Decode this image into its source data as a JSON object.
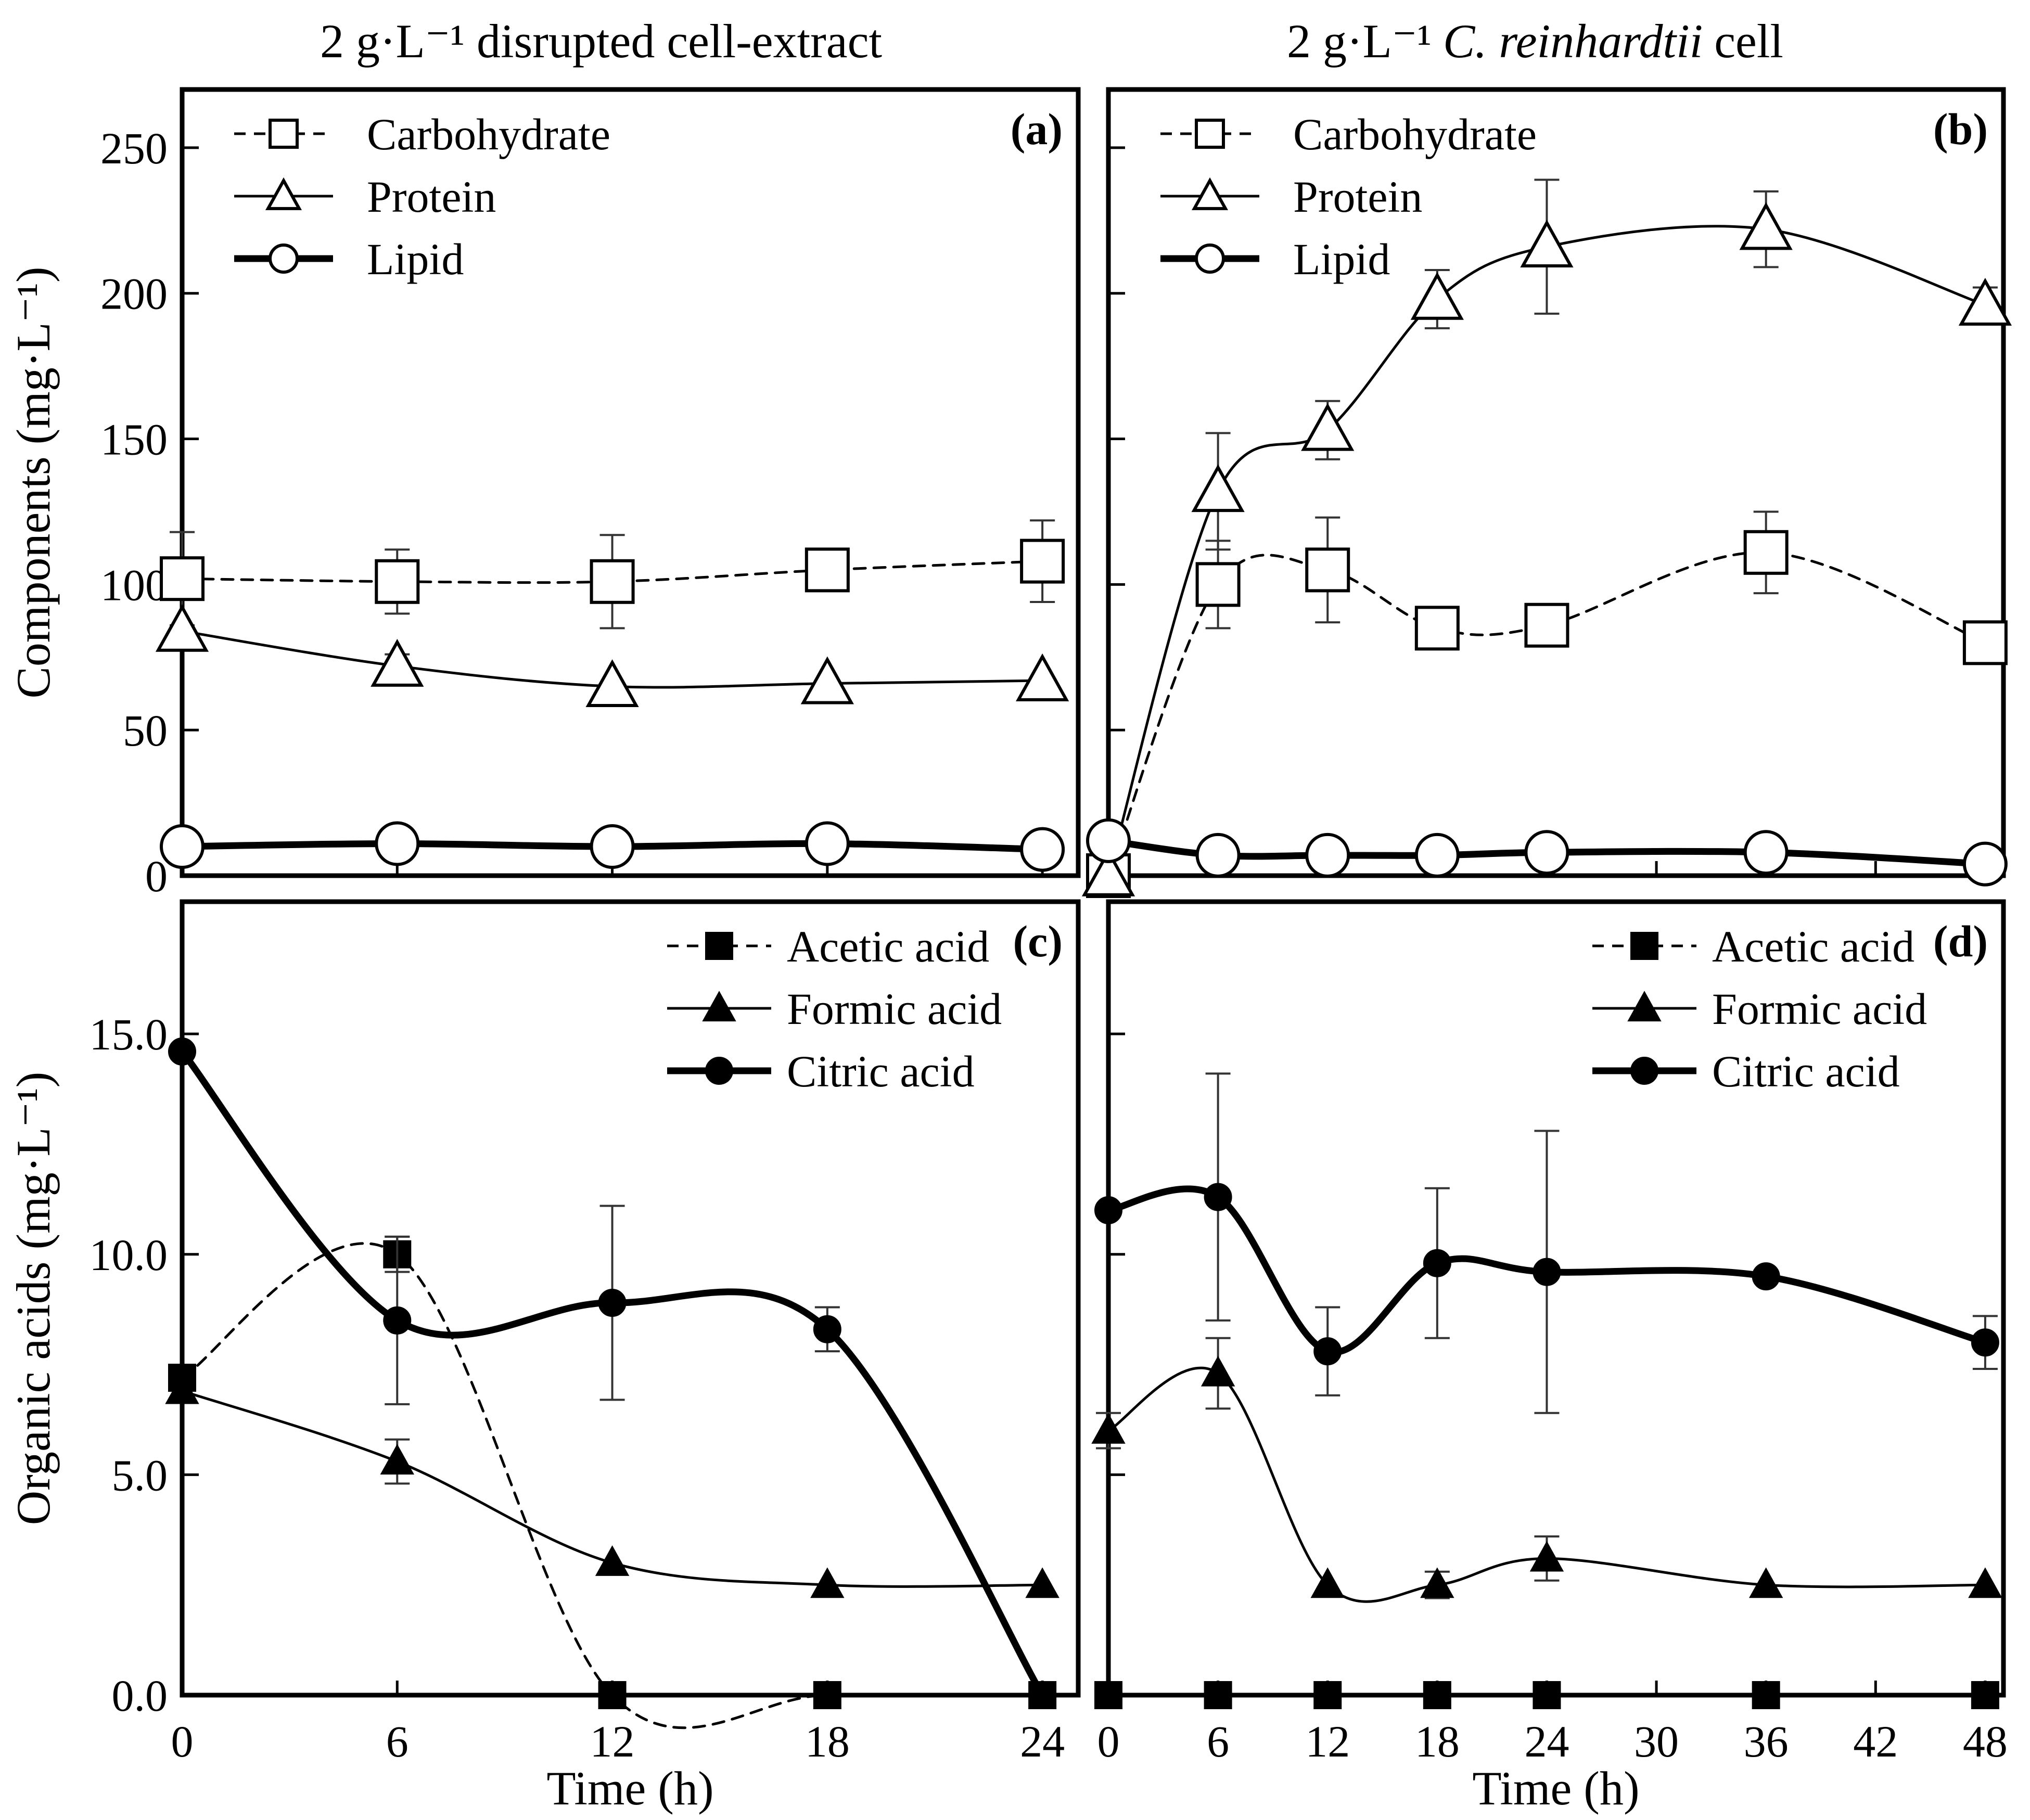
{
  "titles": {
    "left": "2 g·L⁻¹ disrupted cell-extract",
    "right_prefix": "2 g·L⁻¹",
    "right_species": "C. reinhardtii",
    "right_suffix": "cell"
  },
  "chart_data": [
    {
      "id": "a",
      "type": "line",
      "panel_label": "(a)",
      "xlabel": "",
      "ylabel": "Components (mg·L⁻¹)",
      "xlim": [
        0,
        25
      ],
      "ylim": [
        0,
        270
      ],
      "xticks": [
        0,
        6,
        12,
        18,
        24
      ],
      "yticks": [
        0,
        50,
        100,
        150,
        200,
        250
      ],
      "ytick_labels": [
        "0",
        "50",
        "100",
        "150",
        "200",
        "250"
      ],
      "show_x_tick_labels": false,
      "show_y_tick_labels": true,
      "legend_position": "top-left",
      "series": [
        {
          "name": "Carbohydrate",
          "marker": "open-square",
          "line": "dashed",
          "x": [
            0,
            6,
            12,
            18,
            24
          ],
          "y": [
            102,
            101,
            101,
            105,
            108
          ],
          "err": [
            16,
            11,
            16,
            3,
            14
          ]
        },
        {
          "name": "Protein",
          "marker": "open-triangle",
          "line": "thin",
          "x": [
            0,
            6,
            12,
            18,
            24
          ],
          "y": [
            84,
            72,
            65,
            66,
            67
          ],
          "err": [
            0,
            4,
            0,
            0,
            0
          ]
        },
        {
          "name": "Lipid",
          "marker": "open-circle",
          "line": "thick",
          "x": [
            0,
            6,
            12,
            18,
            24
          ],
          "y": [
            10,
            11,
            10,
            11,
            9
          ],
          "err": [
            0,
            0,
            0,
            0,
            0
          ]
        }
      ]
    },
    {
      "id": "b",
      "type": "line",
      "panel_label": "(b)",
      "xlabel": "",
      "ylabel": "",
      "xlim": [
        0,
        49
      ],
      "ylim": [
        0,
        270
      ],
      "xticks": [
        0,
        6,
        12,
        18,
        24,
        30,
        36,
        42,
        48
      ],
      "yticks": [
        0,
        50,
        100,
        150,
        200,
        250
      ],
      "show_x_tick_labels": false,
      "show_y_tick_labels": false,
      "legend_position": "top-left",
      "series": [
        {
          "name": "Carbohydrate",
          "marker": "open-square",
          "line": "dashed",
          "x": [
            0,
            6,
            12,
            18,
            24,
            36,
            48
          ],
          "y": [
            0,
            100,
            105,
            85,
            86,
            111,
            80
          ],
          "err": [
            0,
            15,
            18,
            0,
            7,
            14,
            0
          ]
        },
        {
          "name": "Protein",
          "marker": "open-triangle",
          "line": "thin",
          "x": [
            0,
            6,
            12,
            18,
            24,
            36,
            48
          ],
          "y": [
            0,
            132,
            153,
            198,
            216,
            222,
            196
          ],
          "err": [
            0,
            20,
            10,
            10,
            23,
            13,
            6
          ]
        },
        {
          "name": "Lipid",
          "marker": "open-circle",
          "line": "thick",
          "x": [
            0,
            6,
            12,
            18,
            24,
            36,
            48
          ],
          "y": [
            12,
            7,
            7,
            7,
            8,
            8,
            4
          ],
          "err": [
            0,
            0,
            0,
            0,
            0,
            0,
            0
          ]
        }
      ]
    },
    {
      "id": "c",
      "type": "line",
      "panel_label": "(c)",
      "xlabel": "Time (h)",
      "ylabel": "Organic acids (mg·L⁻¹)",
      "xlim": [
        0,
        25
      ],
      "ylim": [
        0,
        18
      ],
      "xticks": [
        0,
        6,
        12,
        18,
        24
      ],
      "xtick_labels": [
        "0",
        "6",
        "12",
        "18",
        "24"
      ],
      "yticks": [
        0,
        5,
        10,
        15
      ],
      "ytick_labels": [
        "0.0",
        "5.0",
        "10.0",
        "15.0"
      ],
      "show_x_tick_labels": true,
      "show_y_tick_labels": true,
      "legend_position": "top-right",
      "series": [
        {
          "name": "Acetic acid",
          "marker": "filled-square",
          "line": "dashed",
          "x": [
            0,
            6,
            12,
            18,
            24
          ],
          "y": [
            7.2,
            10.0,
            0,
            0,
            0
          ],
          "err": [
            0,
            0.4,
            0,
            0,
            0
          ]
        },
        {
          "name": "Formic acid",
          "marker": "filled-triangle",
          "line": "thin",
          "x": [
            0,
            6,
            12,
            18,
            24
          ],
          "y": [
            6.9,
            5.3,
            3.0,
            2.5,
            2.5
          ],
          "err": [
            0,
            0.5,
            0,
            0,
            0
          ]
        },
        {
          "name": "Citric acid",
          "marker": "filled-circle",
          "line": "thick",
          "x": [
            0,
            6,
            12,
            18,
            24
          ],
          "y": [
            14.6,
            8.5,
            8.9,
            8.3,
            0
          ],
          "err": [
            0,
            1.9,
            2.2,
            0.5,
            0
          ]
        }
      ]
    },
    {
      "id": "d",
      "type": "line",
      "panel_label": "(d)",
      "xlabel": "Time (h)",
      "ylabel": "",
      "xlim": [
        0,
        49
      ],
      "ylim": [
        0,
        18
      ],
      "xticks": [
        0,
        6,
        12,
        18,
        24,
        30,
        36,
        42,
        48
      ],
      "xtick_labels": [
        "0",
        "6",
        "12",
        "18",
        "24",
        "30",
        "36",
        "42",
        "48"
      ],
      "yticks": [
        0,
        5,
        10,
        15
      ],
      "show_x_tick_labels": true,
      "show_y_tick_labels": false,
      "legend_position": "top-right",
      "series": [
        {
          "name": "Acetic acid",
          "marker": "filled-square",
          "line": "dashed",
          "x": [
            0,
            6,
            12,
            18,
            24,
            36,
            48
          ],
          "y": [
            0,
            0,
            0,
            0,
            0,
            0,
            0
          ],
          "err": [
            0,
            0,
            0,
            0,
            0,
            0,
            0
          ]
        },
        {
          "name": "Formic acid",
          "marker": "filled-triangle",
          "line": "thin",
          "x": [
            0,
            6,
            12,
            18,
            24,
            36,
            48
          ],
          "y": [
            6.0,
            7.3,
            2.5,
            2.5,
            3.1,
            2.5,
            2.5
          ],
          "err": [
            0.4,
            0.8,
            0,
            0.3,
            0.5,
            0,
            0
          ]
        },
        {
          "name": "Citric acid",
          "marker": "filled-circle",
          "line": "thick",
          "x": [
            0,
            6,
            12,
            18,
            24,
            36,
            48
          ],
          "y": [
            11.0,
            11.3,
            7.8,
            9.8,
            9.6,
            9.5,
            8.0
          ],
          "err": [
            0,
            2.8,
            1.0,
            1.7,
            3.2,
            0,
            0.6
          ]
        }
      ]
    }
  ]
}
